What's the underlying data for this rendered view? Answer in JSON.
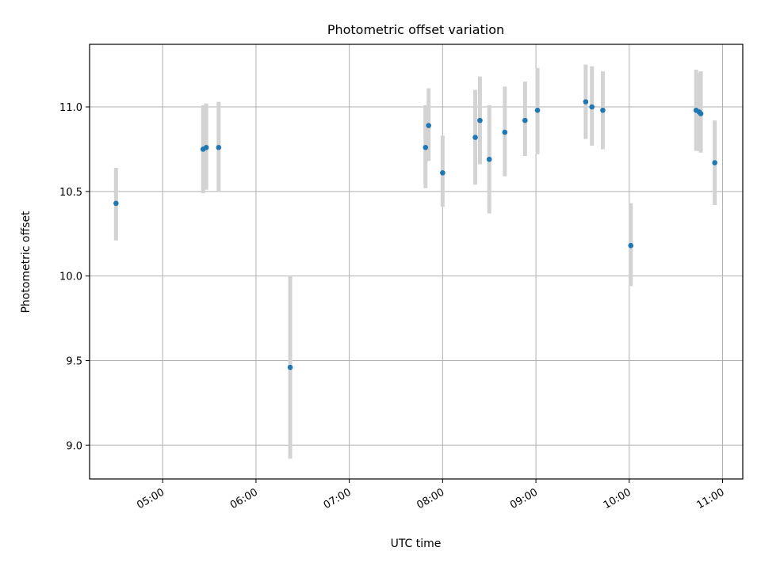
{
  "chart_data": {
    "type": "scatter",
    "title": "Photometric offset variation",
    "xlabel": "UTC time",
    "ylabel": "Photometric offset",
    "xlim": [
      "04:13",
      "11:13"
    ],
    "ylim": [
      8.8,
      11.37
    ],
    "grid": true,
    "x_ticks": [
      "05:00",
      "06:00",
      "07:00",
      "08:00",
      "09:00",
      "10:00",
      "11:00"
    ],
    "y_ticks": [
      9.0,
      9.5,
      10.0,
      10.5,
      11.0
    ],
    "y_tick_labels": [
      "9.0",
      "9.5",
      "10.0",
      "10.5",
      "11.0"
    ],
    "points": [
      {
        "time": "04:30",
        "y": 10.43,
        "err_low": 10.21,
        "err_high": 10.64
      },
      {
        "time": "05:26",
        "y": 10.75,
        "err_low": 10.49,
        "err_high": 11.01
      },
      {
        "time": "05:28",
        "y": 10.76,
        "err_low": 10.51,
        "err_high": 11.02
      },
      {
        "time": "05:36",
        "y": 10.76,
        "err_low": 10.5,
        "err_high": 11.03
      },
      {
        "time": "06:22",
        "y": 9.46,
        "err_low": 8.92,
        "err_high": 10.0
      },
      {
        "time": "07:49",
        "y": 10.76,
        "err_low": 10.52,
        "err_high": 11.01
      },
      {
        "time": "07:51",
        "y": 10.89,
        "err_low": 10.68,
        "err_high": 11.11
      },
      {
        "time": "08:00",
        "y": 10.61,
        "err_low": 10.41,
        "err_high": 10.83
      },
      {
        "time": "08:21",
        "y": 10.82,
        "err_low": 10.54,
        "err_high": 11.1
      },
      {
        "time": "08:24",
        "y": 10.92,
        "err_low": 10.66,
        "err_high": 11.18
      },
      {
        "time": "08:30",
        "y": 10.69,
        "err_low": 10.37,
        "err_high": 11.01
      },
      {
        "time": "08:40",
        "y": 10.85,
        "err_low": 10.59,
        "err_high": 11.12
      },
      {
        "time": "08:53",
        "y": 10.92,
        "err_low": 10.71,
        "err_high": 11.15
      },
      {
        "time": "09:01",
        "y": 10.98,
        "err_low": 10.72,
        "err_high": 11.23
      },
      {
        "time": "09:32",
        "y": 11.03,
        "err_low": 10.81,
        "err_high": 11.25
      },
      {
        "time": "09:36",
        "y": 11.0,
        "err_low": 10.77,
        "err_high": 11.24
      },
      {
        "time": "09:43",
        "y": 10.98,
        "err_low": 10.75,
        "err_high": 11.21
      },
      {
        "time": "10:01",
        "y": 10.18,
        "err_low": 9.94,
        "err_high": 10.43
      },
      {
        "time": "10:43",
        "y": 10.98,
        "err_low": 10.74,
        "err_high": 11.22
      },
      {
        "time": "10:45",
        "y": 10.97,
        "err_low": 10.74,
        "err_high": 11.2
      },
      {
        "time": "10:46",
        "y": 10.96,
        "err_low": 10.73,
        "err_high": 11.21
      },
      {
        "time": "10:55",
        "y": 10.67,
        "err_low": 10.42,
        "err_high": 10.92
      }
    ],
    "colors": {
      "point": "#1f77b4",
      "errorbar": "#d3d3d3",
      "grid": "#b0b0b0",
      "axes": "#000000"
    }
  }
}
